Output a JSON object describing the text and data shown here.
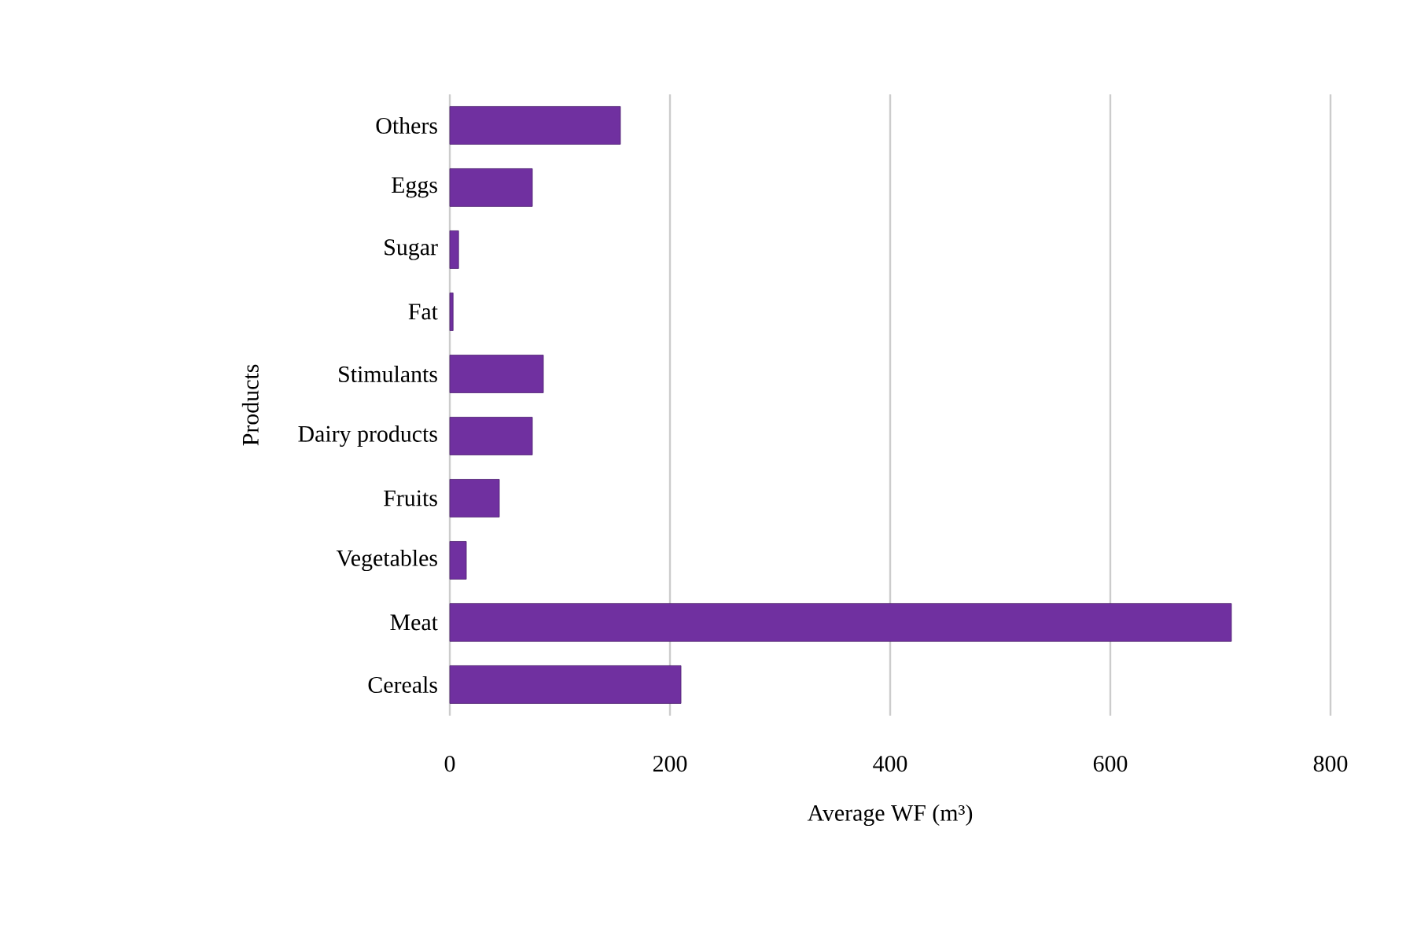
{
  "chart_data": {
    "type": "bar",
    "orientation": "horizontal",
    "xlabel": "Average WF (m³)",
    "ylabel": "Products",
    "categories": [
      "Others",
      "Eggs",
      "Sugar",
      "Fat",
      "Stimulants",
      "Dairy products",
      "Fruits",
      "Vegetables",
      "Meat",
      "Cereals"
    ],
    "values": [
      155,
      75,
      8,
      3,
      85,
      75,
      45,
      15,
      710,
      210
    ],
    "color": "#7030a0",
    "xlim": [
      0,
      800
    ],
    "xticks": [
      0,
      200,
      400,
      600,
      800
    ],
    "grid": "x"
  }
}
